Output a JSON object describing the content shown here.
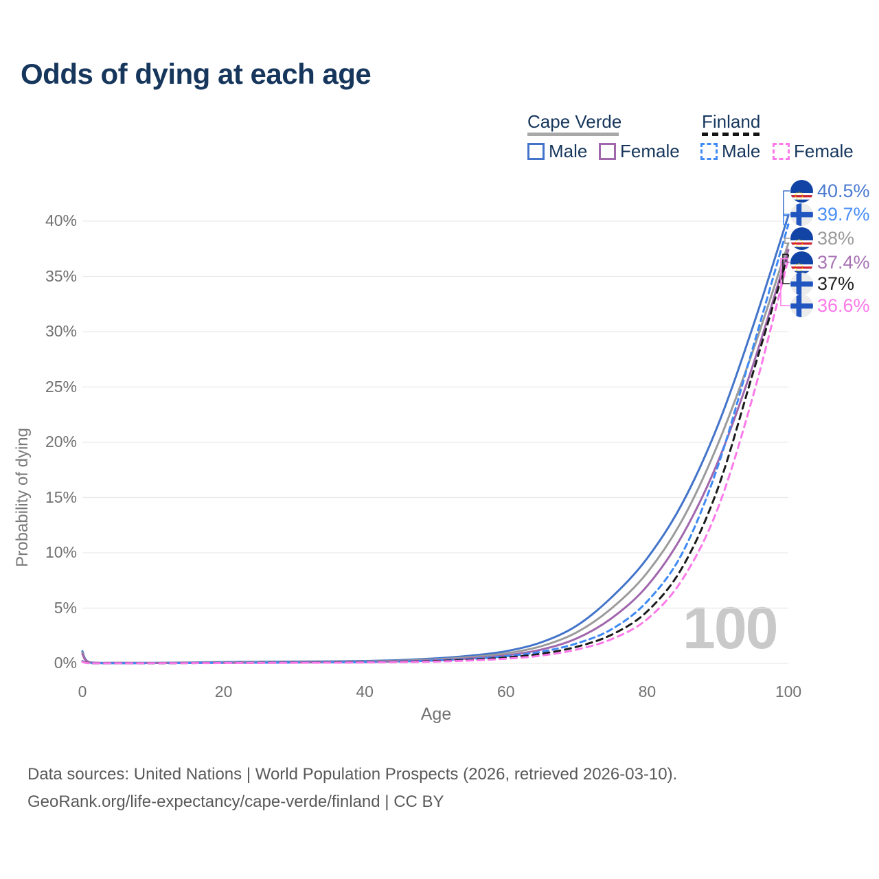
{
  "title": "Odds of dying at each age",
  "legend": {
    "groups": [
      {
        "label": "Cape Verde",
        "line_style": "solid",
        "underline_color": "#a8a8a8"
      },
      {
        "label": "Finland",
        "line_style": "dashed",
        "underline_color": "#141414"
      }
    ],
    "items": [
      {
        "label": "Male",
        "country": "Cape Verde",
        "swatch_color": "#4374c9",
        "dashed": false
      },
      {
        "label": "Female",
        "country": "Cape Verde",
        "swatch_color": "#a167ad",
        "dashed": false
      },
      {
        "label": "Male",
        "country": "Finland",
        "swatch_color": "#3f8af5",
        "dashed": true
      },
      {
        "label": "Female",
        "country": "Finland",
        "swatch_color": "#fb79e9",
        "dashed": true
      }
    ]
  },
  "chart_data": {
    "type": "line",
    "title": "Odds of dying at each age",
    "xlabel": "Age",
    "ylabel": "Probability of dying",
    "xlim": [
      0,
      100
    ],
    "ylim": [
      0,
      43
    ],
    "xticks": [
      0,
      20,
      40,
      60,
      80,
      100
    ],
    "yticks": [
      0,
      5,
      10,
      15,
      20,
      25,
      30,
      35,
      40
    ],
    "ytick_suffix": "%",
    "grid": true,
    "legend_position": "top-right",
    "watermark": "100",
    "ages": [
      0,
      1,
      5,
      10,
      15,
      20,
      25,
      30,
      35,
      40,
      45,
      50,
      55,
      60,
      65,
      70,
      75,
      80,
      85,
      90,
      95,
      100
    ],
    "series": [
      {
        "name": "Cape Verde Male",
        "country": "Cape Verde",
        "sex": "Male",
        "color": "#4374c9",
        "label_color": "#4a7ad0",
        "dash": null,
        "end_label": "40.5%",
        "end_value": 40.5,
        "values": [
          1.1,
          0.1,
          0.05,
          0.05,
          0.08,
          0.12,
          0.14,
          0.16,
          0.18,
          0.22,
          0.3,
          0.45,
          0.7,
          1.1,
          1.9,
          3.4,
          6.0,
          9.5,
          14.5,
          21.5,
          30.5,
          40.5
        ]
      },
      {
        "name": "Cape Verde Total",
        "country": "Cape Verde",
        "sex": "All",
        "color": "#9b9b9b",
        "label_color": "#9b9b9b",
        "dash": null,
        "end_label": "38%",
        "end_value": 38,
        "values": [
          0.97,
          0.09,
          0.045,
          0.04,
          0.06,
          0.08,
          0.1,
          0.12,
          0.14,
          0.17,
          0.24,
          0.36,
          0.57,
          0.9,
          1.55,
          2.8,
          5.0,
          8.2,
          13.0,
          19.8,
          28.3,
          38.0
        ]
      },
      {
        "name": "Cape Verde Female",
        "country": "Cape Verde",
        "sex": "Female",
        "color": "#a167ad",
        "label_color": "#a974b4",
        "dash": null,
        "end_label": "37.4%",
        "end_value": 37.4,
        "values": [
          0.85,
          0.08,
          0.04,
          0.03,
          0.04,
          0.05,
          0.06,
          0.08,
          0.1,
          0.13,
          0.19,
          0.28,
          0.45,
          0.72,
          1.25,
          2.25,
          4.1,
          7.0,
          11.6,
          18.2,
          27.0,
          37.4
        ]
      },
      {
        "name": "Finland Male",
        "country": "Finland",
        "sex": "Male",
        "color": "#3f8af5",
        "label_color": "#4a8ff7",
        "dash": [
          8,
          6
        ],
        "end_label": "39.7%",
        "end_value": 39.7,
        "values": [
          0.2,
          0.02,
          0.01,
          0.01,
          0.03,
          0.05,
          0.06,
          0.08,
          0.1,
          0.12,
          0.17,
          0.26,
          0.4,
          0.65,
          1.05,
          1.8,
          3.1,
          5.6,
          10.0,
          17.8,
          28.6,
          39.7
        ]
      },
      {
        "name": "Finland Total",
        "country": "Finland",
        "sex": "All",
        "color": "#1b1b1b",
        "label_color": "#222222",
        "dash": [
          9,
          7
        ],
        "end_label": "37%",
        "end_value": 37,
        "values": [
          0.18,
          0.018,
          0.012,
          0.01,
          0.025,
          0.04,
          0.05,
          0.065,
          0.08,
          0.1,
          0.14,
          0.21,
          0.33,
          0.53,
          0.87,
          1.5,
          2.6,
          4.7,
          8.7,
          15.8,
          26.3,
          37.0
        ]
      },
      {
        "name": "Finland Female",
        "country": "Finland",
        "sex": "Female",
        "color": "#fb79e9",
        "label_color": "#fb79e9",
        "dash": [
          9,
          7
        ],
        "end_label": "36.6%",
        "end_value": 36.6,
        "values": [
          0.15,
          0.015,
          0.01,
          0.01,
          0.02,
          0.03,
          0.04,
          0.05,
          0.06,
          0.08,
          0.11,
          0.16,
          0.26,
          0.42,
          0.7,
          1.25,
          2.2,
          4.0,
          7.6,
          14.0,
          24.2,
          36.6
        ]
      }
    ]
  },
  "footer": {
    "line1": "Data sources: United Nations | World Population Prospects (2026, retrieved 2026-03-10).",
    "line2": "GeoRank.org/life-expectancy/cape-verde/finland | CC BY"
  }
}
